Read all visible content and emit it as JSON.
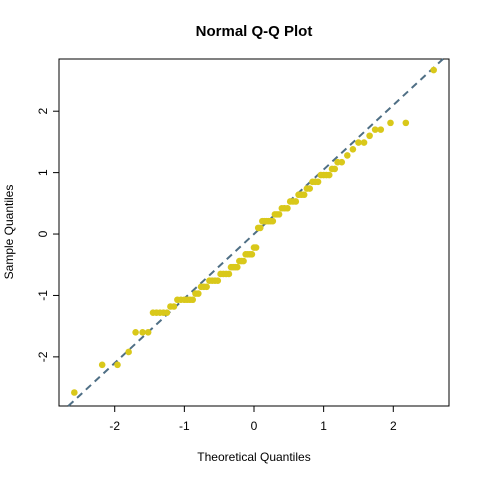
{
  "chart_data": {
    "type": "scatter",
    "title": "Normal Q-Q Plot",
    "xlabel": "Theoretical Quantiles",
    "ylabel": "Sample Quantiles",
    "xlim": [
      -2.8,
      2.8
    ],
    "ylim": [
      -2.8,
      2.85
    ],
    "x_ticks": [
      -2,
      -1,
      0,
      1,
      2
    ],
    "y_ticks": [
      -2,
      -1,
      0,
      1,
      2
    ],
    "x_tick_labels": [
      "-2",
      "-1",
      "0",
      "1",
      "2"
    ],
    "y_tick_labels": [
      "-2",
      "-1",
      "0",
      "1",
      "2"
    ],
    "grid": false,
    "point_color": "#d9c81a",
    "reference_line": {
      "intercept": 0.0,
      "slope": 1.05,
      "color": "#4f6f85",
      "style": "dashed"
    },
    "points": [
      [
        -2.58,
        -2.58
      ],
      [
        -2.18,
        -2.13
      ],
      [
        -1.96,
        -2.13
      ],
      [
        -1.8,
        -1.92
      ],
      [
        -1.7,
        -1.6
      ],
      [
        -1.6,
        -1.6
      ],
      [
        -1.52,
        -1.6
      ],
      [
        -1.45,
        -1.28
      ],
      [
        -1.4,
        -1.28
      ],
      [
        -1.35,
        -1.28
      ],
      [
        -1.3,
        -1.28
      ],
      [
        -1.25,
        -1.28
      ],
      [
        -1.2,
        -1.18
      ],
      [
        -1.15,
        -1.18
      ],
      [
        -1.1,
        -1.07
      ],
      [
        -1.05,
        -1.07
      ],
      [
        -1.0,
        -1.07
      ],
      [
        -0.96,
        -1.07
      ],
      [
        -0.92,
        -1.07
      ],
      [
        -0.88,
        -1.07
      ],
      [
        -0.84,
        -0.97
      ],
      [
        -0.8,
        -0.97
      ],
      [
        -0.76,
        -0.86
      ],
      [
        -0.72,
        -0.86
      ],
      [
        -0.68,
        -0.86
      ],
      [
        -0.64,
        -0.76
      ],
      [
        -0.6,
        -0.76
      ],
      [
        -0.56,
        -0.76
      ],
      [
        -0.52,
        -0.76
      ],
      [
        -0.48,
        -0.65
      ],
      [
        -0.44,
        -0.65
      ],
      [
        -0.4,
        -0.65
      ],
      [
        -0.36,
        -0.65
      ],
      [
        -0.33,
        -0.54
      ],
      [
        -0.3,
        -0.54
      ],
      [
        -0.27,
        -0.54
      ],
      [
        -0.24,
        -0.54
      ],
      [
        -0.21,
        -0.44
      ],
      [
        -0.18,
        -0.44
      ],
      [
        -0.15,
        -0.44
      ],
      [
        -0.12,
        -0.33
      ],
      [
        -0.09,
        -0.33
      ],
      [
        -0.06,
        -0.33
      ],
      [
        -0.03,
        -0.33
      ],
      [
        0.0,
        -0.22
      ],
      [
        0.03,
        -0.22
      ],
      [
        0.06,
        0.1
      ],
      [
        0.09,
        0.1
      ],
      [
        0.12,
        0.21
      ],
      [
        0.15,
        0.21
      ],
      [
        0.18,
        0.21
      ],
      [
        0.21,
        0.21
      ],
      [
        0.24,
        0.21
      ],
      [
        0.27,
        0.21
      ],
      [
        0.3,
        0.32
      ],
      [
        0.33,
        0.32
      ],
      [
        0.36,
        0.32
      ],
      [
        0.4,
        0.42
      ],
      [
        0.44,
        0.42
      ],
      [
        0.48,
        0.42
      ],
      [
        0.52,
        0.53
      ],
      [
        0.56,
        0.53
      ],
      [
        0.6,
        0.53
      ],
      [
        0.64,
        0.64
      ],
      [
        0.68,
        0.64
      ],
      [
        0.72,
        0.64
      ],
      [
        0.76,
        0.74
      ],
      [
        0.8,
        0.74
      ],
      [
        0.84,
        0.85
      ],
      [
        0.88,
        0.85
      ],
      [
        0.92,
        0.85
      ],
      [
        0.96,
        0.96
      ],
      [
        1.0,
        0.96
      ],
      [
        1.04,
        0.96
      ],
      [
        1.08,
        0.96
      ],
      [
        1.12,
        1.06
      ],
      [
        1.16,
        1.06
      ],
      [
        1.2,
        1.17
      ],
      [
        1.26,
        1.17
      ],
      [
        1.34,
        1.28
      ],
      [
        1.42,
        1.38
      ],
      [
        1.5,
        1.49
      ],
      [
        1.58,
        1.49
      ],
      [
        1.66,
        1.6
      ],
      [
        1.74,
        1.7
      ],
      [
        1.82,
        1.7
      ],
      [
        1.96,
        1.81
      ],
      [
        2.18,
        1.81
      ],
      [
        2.58,
        2.67
      ]
    ]
  }
}
